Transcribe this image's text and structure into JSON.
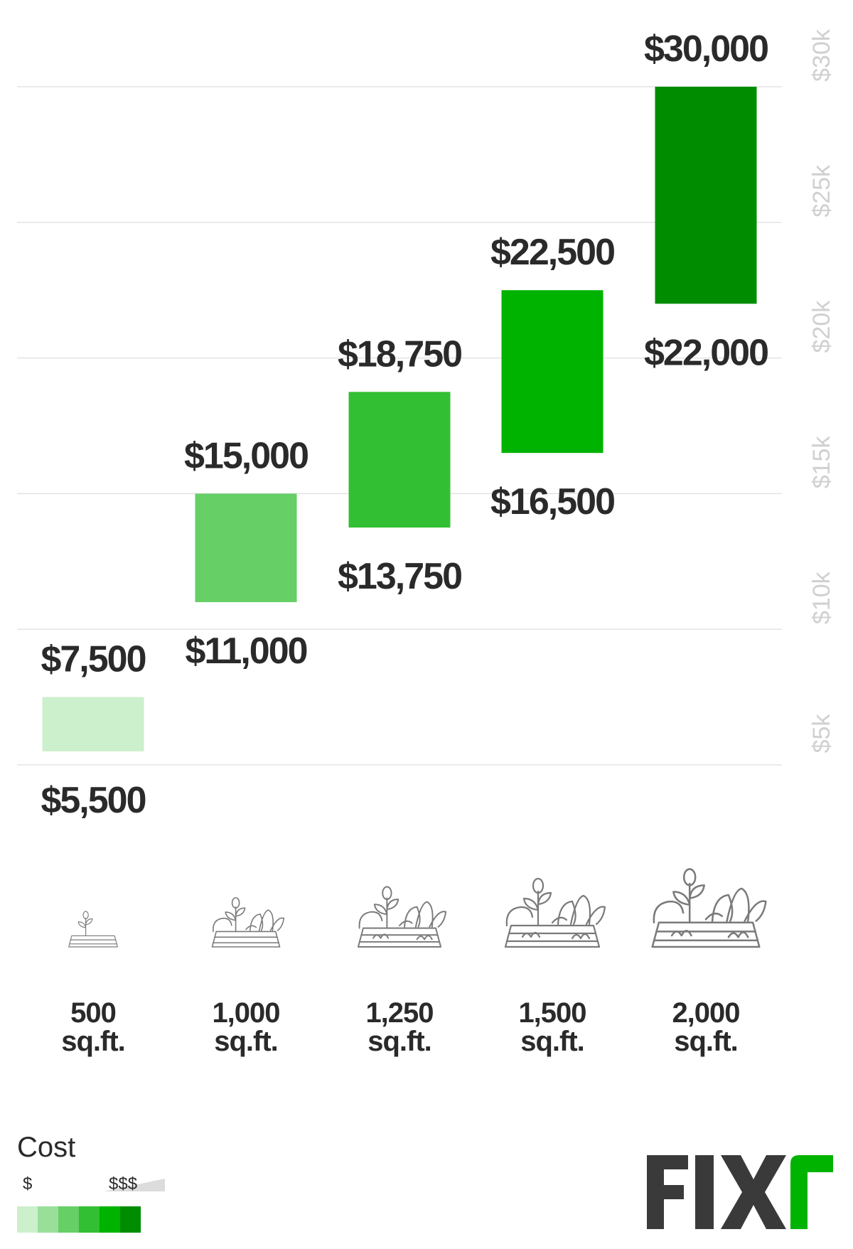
{
  "chart_data": {
    "type": "bar",
    "subtype": "floating-range",
    "categories": [
      "500 sq.ft.",
      "1,000 sq.ft.",
      "1,250 sq.ft.",
      "1,500 sq.ft.",
      "2,000 sq.ft."
    ],
    "category_lines": [
      [
        "500",
        "sq.ft."
      ],
      [
        "1,000",
        "sq.ft."
      ],
      [
        "1,250",
        "sq.ft."
      ],
      [
        "1,500",
        "sq.ft."
      ],
      [
        "2,000",
        "sq.ft."
      ]
    ],
    "series": [
      {
        "low": 5500,
        "high": 7500,
        "low_label": "$5,500",
        "high_label": "$7,500",
        "color": "#ccefcc",
        "icon": "garden-bed-small-icon"
      },
      {
        "low": 11000,
        "high": 15000,
        "low_label": "$11,000",
        "high_label": "$15,000",
        "color": "#66cf66",
        "icon": "garden-bed-medium-icon"
      },
      {
        "low": 13750,
        "high": 18750,
        "low_label": "$13,750",
        "high_label": "$18,750",
        "color": "#33bf33",
        "icon": "garden-bed-large-icon"
      },
      {
        "low": 16500,
        "high": 22500,
        "low_label": "$16,500",
        "high_label": "$22,500",
        "color": "#00b300",
        "icon": "garden-bed-xlarge-icon"
      },
      {
        "low": 22000,
        "high": 30000,
        "low_label": "$22,000",
        "high_label": "$30,000",
        "color": "#008c00",
        "icon": "garden-bed-xxlarge-icon"
      }
    ],
    "y_ticks": [
      {
        "value": 5000,
        "label": "$5k"
      },
      {
        "value": 10000,
        "label": "$10k"
      },
      {
        "value": 15000,
        "label": "$15k"
      },
      {
        "value": 20000,
        "label": "$20k"
      },
      {
        "value": 25000,
        "label": "$25k"
      },
      {
        "value": 30000,
        "label": "$30k"
      }
    ],
    "ylim": [
      0,
      33200
    ],
    "grid": true,
    "y_axis_position": "right"
  },
  "legend": {
    "title": "Cost",
    "low_label": "$",
    "high_label": "$$$",
    "swatches": [
      "#ccefcc",
      "#99df99",
      "#66cf66",
      "#33bf33",
      "#00b300",
      "#008c00"
    ]
  },
  "brand": {
    "name": "FIXR",
    "colors": {
      "dark": "#3a3a3a",
      "accent": "#00b300"
    }
  }
}
